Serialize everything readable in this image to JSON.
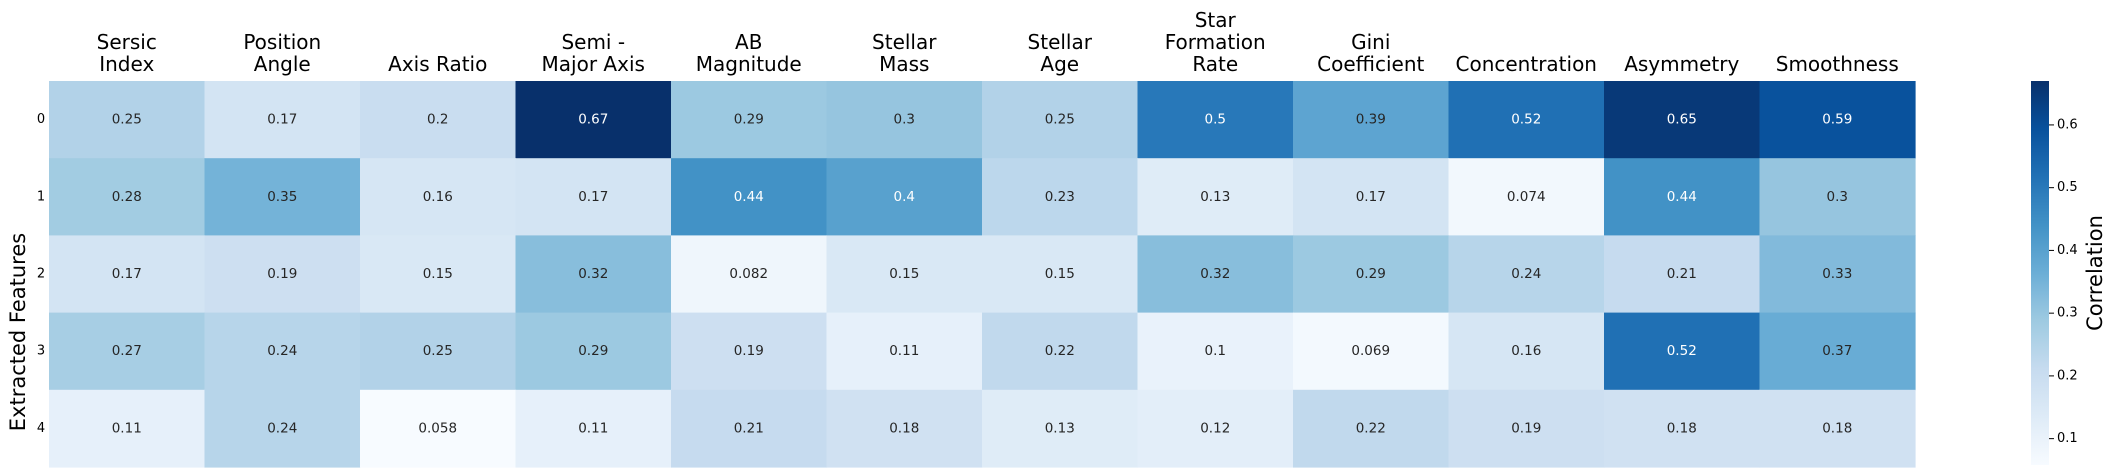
{
  "chart_data": {
    "type": "heatmap",
    "title": "",
    "xlabel": "",
    "ylabel": "Extracted Features",
    "colorbar_label": "Correlation",
    "colormap": "Blues",
    "vmin": 0.058,
    "vmax": 0.67,
    "columns": [
      [
        "Sersic",
        "Index"
      ],
      [
        "Position",
        "Angle"
      ],
      [
        "Axis Ratio"
      ],
      [
        "Semi -",
        "Major Axis"
      ],
      [
        "AB",
        "Magnitude"
      ],
      [
        "Stellar",
        "Mass"
      ],
      [
        "Stellar",
        "Age"
      ],
      [
        "Star",
        "Formation",
        "Rate"
      ],
      [
        "Gini",
        "Coefficient"
      ],
      [
        "Concentration"
      ],
      [
        "Asymmetry"
      ],
      [
        "Smoothness"
      ]
    ],
    "rows": [
      "0",
      "1",
      "2",
      "3",
      "4"
    ],
    "values": [
      [
        0.25,
        0.17,
        0.2,
        0.67,
        0.29,
        0.3,
        0.25,
        0.5,
        0.39,
        0.52,
        0.65,
        0.59
      ],
      [
        0.28,
        0.35,
        0.16,
        0.17,
        0.44,
        0.4,
        0.23,
        0.13,
        0.17,
        0.074,
        0.44,
        0.3
      ],
      [
        0.17,
        0.19,
        0.15,
        0.32,
        0.082,
        0.15,
        0.15,
        0.32,
        0.29,
        0.24,
        0.21,
        0.33
      ],
      [
        0.27,
        0.24,
        0.25,
        0.29,
        0.19,
        0.11,
        0.22,
        0.1,
        0.069,
        0.16,
        0.52,
        0.37
      ],
      [
        0.11,
        0.24,
        0.058,
        0.11,
        0.21,
        0.18,
        0.13,
        0.12,
        0.22,
        0.19,
        0.18,
        0.18
      ]
    ],
    "colorbar_ticks": [
      "0.1",
      "0.2",
      "0.3",
      "0.4",
      "0.5",
      "0.6"
    ]
  }
}
